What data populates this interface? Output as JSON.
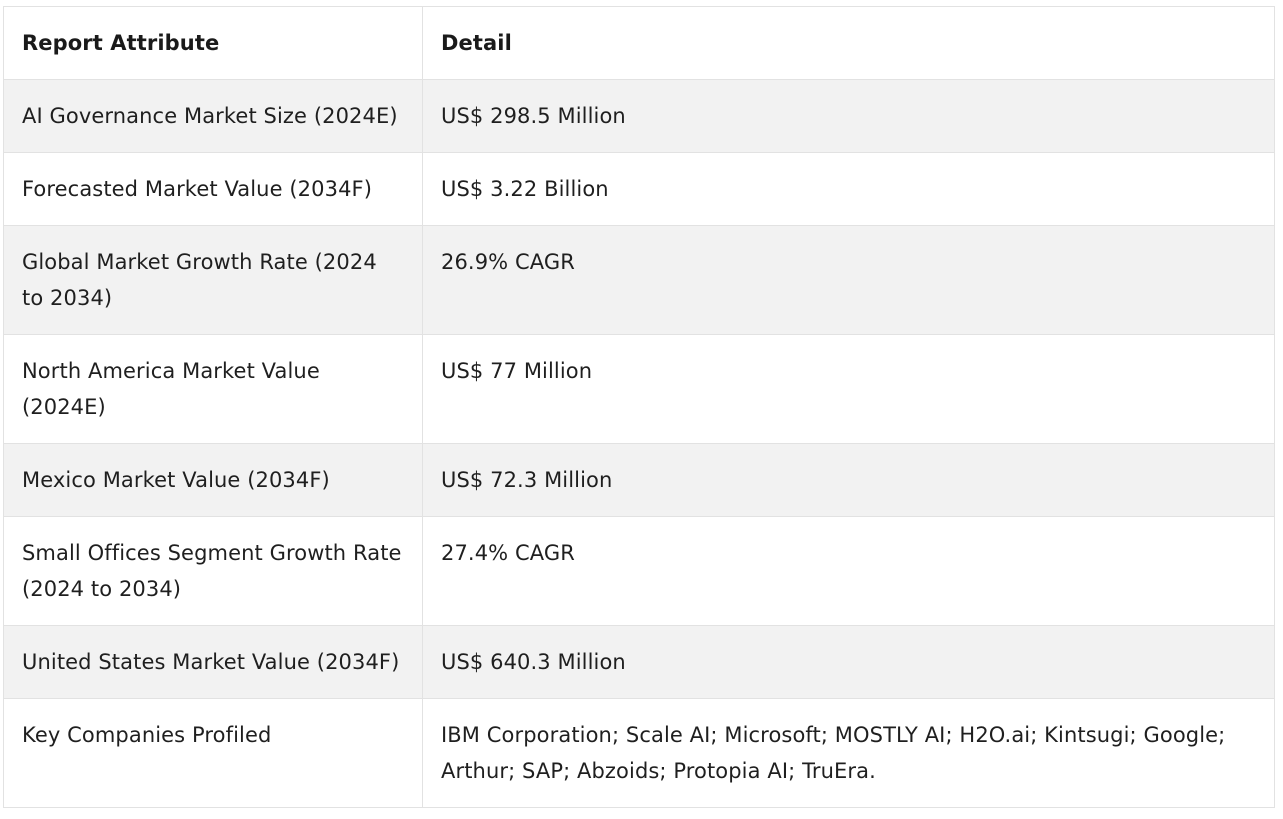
{
  "table": {
    "headers": [
      "Report Attribute",
      "Detail"
    ],
    "rows": [
      [
        "AI Governance Market Size (2024E)",
        "US$ 298.5 Million"
      ],
      [
        "Forecasted Market Value (2034F)",
        "US$ 3.22 Billion"
      ],
      [
        "Global Market Growth Rate (2024 to 2034)",
        "26.9% CAGR"
      ],
      [
        "North America Market Value (2024E)",
        "US$ 77 Million"
      ],
      [
        "Mexico Market Value (2034F)",
        "US$ 72.3 Million"
      ],
      [
        "Small Offices Segment Growth Rate (2024 to 2034)",
        "27.4% CAGR"
      ],
      [
        "United States Market Value (2034F)",
        "US$ 640.3 Million"
      ],
      [
        "Key Companies Profiled",
        "IBM Corporation; Scale AI; Microsoft; MOSTLY AI; H2O.ai; Kintsugi; Google; Arthur; SAP; Abzoids; Protopia AI; TruEra."
      ]
    ]
  },
  "colors": {
    "row_stripe": "#f2f2f2",
    "border": "#e2e2e2",
    "text": "#1f1f1f"
  }
}
